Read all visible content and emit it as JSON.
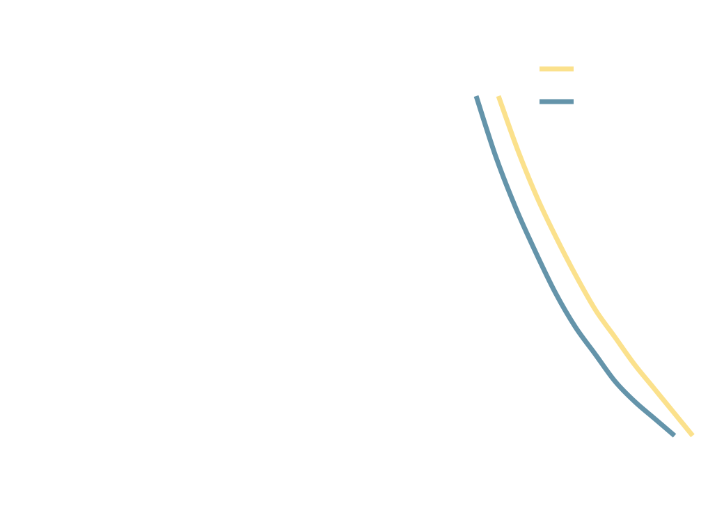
{
  "chart_data": {
    "type": "line",
    "title": "",
    "xlabel": "",
    "ylabel": "",
    "xlim": [
      0,
      1
    ],
    "ylim": [
      0,
      1
    ],
    "grid": false,
    "legend_placement": "top-right",
    "series": [
      {
        "color": "#fbe18c",
        "x": [
          0.0,
          0.1,
          0.2,
          0.3,
          0.4,
          0.5,
          0.6,
          0.7,
          0.8,
          0.9,
          1.0
        ],
        "y": [
          1.0,
          0.84,
          0.7,
          0.58,
          0.47,
          0.37,
          0.29,
          0.21,
          0.14,
          0.07,
          0.0
        ]
      },
      {
        "color": "#6494aa",
        "x": [
          0.0,
          0.1,
          0.2,
          0.3,
          0.4,
          0.5,
          0.6,
          0.7,
          0.8,
          0.9,
          1.0
        ],
        "y": [
          1.0,
          0.82,
          0.67,
          0.54,
          0.42,
          0.32,
          0.24,
          0.16,
          0.1,
          0.05,
          0.0
        ]
      }
    ]
  }
}
